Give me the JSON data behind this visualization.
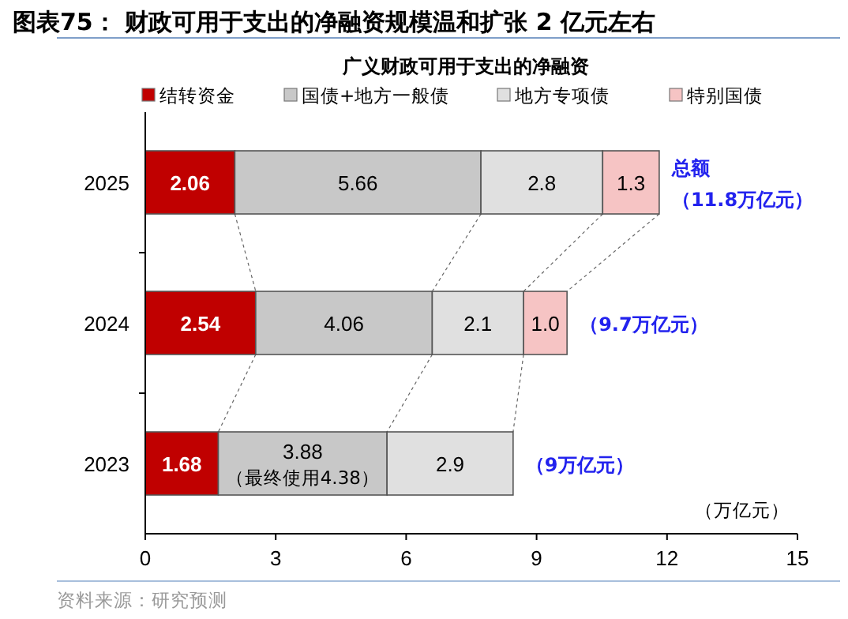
{
  "chart_data": {
    "type": "bar",
    "orientation": "horizontal",
    "stacked": true,
    "title": "图表75：  财政可用于支出的净融资规模温和扩张 2 亿元左右",
    "subtitle": "广义财政可用于支出的净融资",
    "categories": [
      "2025",
      "2024",
      "2023"
    ],
    "series": [
      {
        "name": "结转资金",
        "color": "#c00000",
        "values": [
          2.06,
          2.54,
          1.68
        ],
        "value_labels": [
          "2.06",
          "2.54",
          "1.68"
        ]
      },
      {
        "name": "国债+地方一般债",
        "color": "#c8c8c8",
        "values": [
          5.66,
          4.06,
          3.88
        ],
        "value_labels": [
          "5.66",
          "4.06",
          "3.88（最终使用4.38）"
        ]
      },
      {
        "name": "地方专项债",
        "color": "#e0e0e0",
        "values": [
          2.8,
          2.1,
          2.9
        ],
        "value_labels": [
          "2.8",
          "2.1",
          "2.9"
        ]
      },
      {
        "name": "特别国债",
        "color": "#f6c4c4",
        "values": [
          1.3,
          1.0,
          null
        ],
        "value_labels": [
          "1.3",
          "1.0",
          null
        ]
      }
    ],
    "totals": [
      "总额（11.8万亿元）",
      "（9.7万亿元）",
      "（9万亿元）"
    ],
    "xlim": [
      0,
      15
    ],
    "xticks": [
      0,
      3,
      6,
      9,
      12,
      15
    ],
    "legend": "top",
    "grid": false,
    "annotations": [
      "（万亿元）",
      "资料来源：研究预测"
    ]
  }
}
